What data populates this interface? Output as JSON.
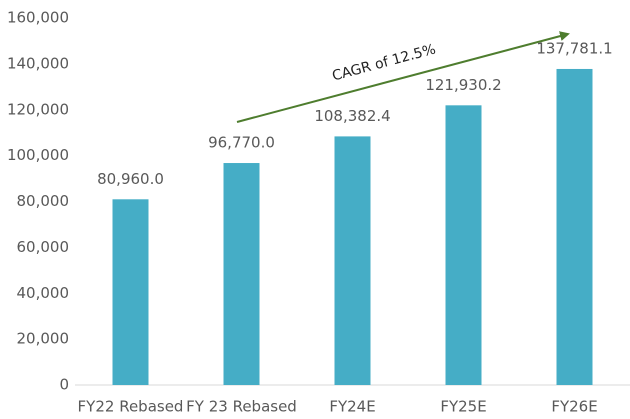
{
  "chart_data": {
    "type": "bar",
    "categories": [
      "FY22 Rebased",
      "FY 23 Rebased",
      "FY24E",
      "FY25E",
      "FY26E"
    ],
    "values": [
      80960,
      96770,
      108382.4,
      121930.2,
      137781.1
    ],
    "value_labels": [
      "80,960.0",
      "96,770.0",
      "108,382.4",
      "121,930.2",
      "137,781.1"
    ],
    "color": "#45adc6",
    "ylim": [
      0,
      160000
    ],
    "yticks": [
      0,
      {
        "value": 20000,
        "label": "20,000"
      },
      {
        "value": 40000,
        "label": "40,000"
      },
      {
        "value": 60000,
        "label": "60,000"
      },
      {
        "value": 80000,
        "label": "80,000"
      },
      {
        "value": 100000,
        "label": "100,000"
      },
      {
        "value": 120000,
        "label": "120,000"
      },
      {
        "value": 140000,
        "label": "140,000"
      },
      {
        "value": 160000,
        "label": "160,000"
      }
    ],
    "grid": false,
    "annotation": "CAGR of 12.5%"
  }
}
